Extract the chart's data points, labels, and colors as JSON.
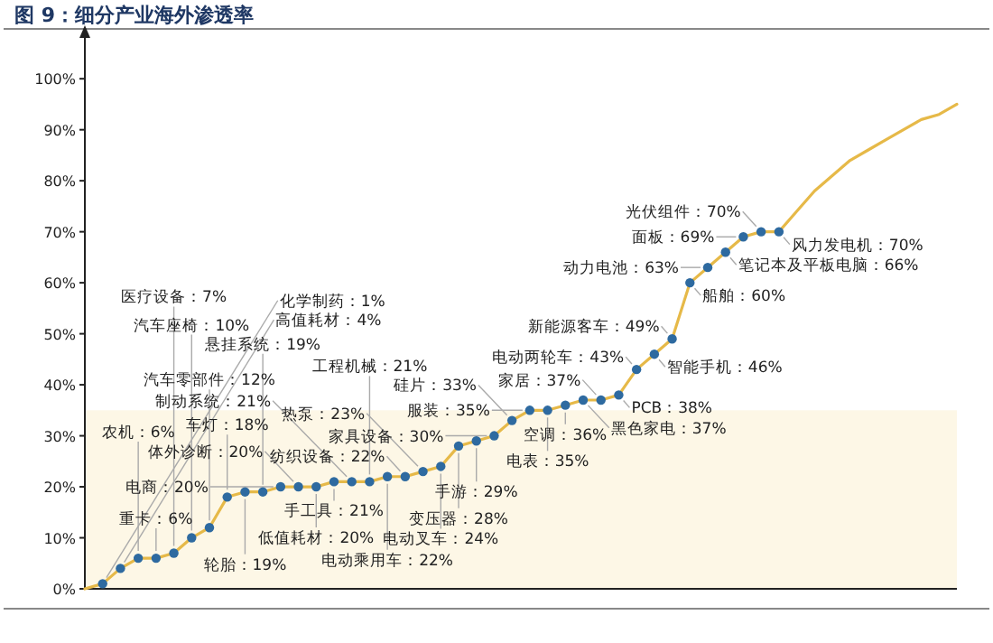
{
  "chart_data": {
    "type": "line",
    "title": "图 9：细分产业海外渗透率",
    "categories": [
      null,
      null,
      null,
      null,
      null,
      null,
      null,
      null,
      null,
      null,
      null,
      null,
      null,
      null,
      null,
      null,
      null,
      null,
      null,
      null,
      null,
      null,
      null,
      null,
      null,
      null,
      null,
      null,
      null,
      null,
      null,
      null,
      null,
      null,
      null,
      null,
      null,
      null,
      null,
      null,
      null,
      null,
      null,
      null,
      null,
      null,
      null,
      null,
      null,
      null
    ],
    "ylim": [
      0,
      108
    ],
    "tick_labels": "y",
    "yticks": [
      {
        "value": 0,
        "label": "0%"
      },
      {
        "value": 10,
        "label": "10%"
      },
      {
        "value": 20,
        "label": "20%"
      },
      {
        "value": 30,
        "label": "30%"
      },
      {
        "value": 40,
        "label": "40%"
      },
      {
        "value": 50,
        "label": "50%"
      },
      {
        "value": 60,
        "label": "60%"
      },
      {
        "value": 70,
        "label": "70%"
      },
      {
        "value": 80,
        "label": "80%"
      },
      {
        "value": 90,
        "label": "90%"
      },
      {
        "value": 100,
        "label": "100%"
      }
    ],
    "bands": [
      {
        "axis": "y",
        "from": 0,
        "to": 35,
        "color": "#fdf7e6"
      }
    ],
    "series": [
      {
        "color": "#e6b948",
        "values": [
          0,
          1,
          4,
          6,
          6,
          7,
          10,
          12,
          18,
          19,
          19,
          20,
          20,
          20,
          21,
          21,
          21,
          22,
          22,
          23,
          24,
          28,
          29,
          30,
          33,
          35,
          35,
          36,
          37,
          37,
          38,
          43,
          46,
          49,
          60,
          63,
          66,
          69,
          70,
          70,
          74,
          78,
          81,
          84,
          86,
          88,
          90,
          92,
          93,
          95
        ]
      },
      {
        "type": "scatter",
        "marker": "circle",
        "color": "#2e6aa0",
        "values": [
          null,
          1,
          4,
          6,
          6,
          7,
          10,
          12,
          18,
          19,
          19,
          20,
          20,
          20,
          21,
          21,
          21,
          22,
          22,
          23,
          24,
          28,
          29,
          30,
          33,
          35,
          35,
          36,
          37,
          37,
          38,
          43,
          46,
          49,
          60,
          63,
          66,
          69,
          70,
          70,
          null,
          null,
          null,
          null,
          null,
          null,
          null,
          null,
          null,
          null
        ]
      }
    ],
    "annotations": [
      "化学制药：1%",
      "高值耗材：4%",
      "农机：6%",
      "重卡：6%",
      "医疗设备：7%",
      "汽车座椅：10%",
      "汽车零部件：12%",
      "车灯：18%",
      "轮胎：19%",
      "悬挂系统：19%",
      "电商：20%",
      "体外诊断：20%",
      "低值耗材：20%",
      "手工具：21%",
      "制动系统：21%",
      "工程机械：21%",
      "电动乘用车：22%",
      "纺织设备：22%",
      "热泵：23%",
      "电动叉车：24%",
      "变压器：28%",
      "手游：29%",
      "家具设备：30%",
      "硅片：33%",
      "服装：35%",
      "电表：35%",
      "空调：36%",
      "黑色家电：37%",
      "家居：37%",
      "PCB：38%",
      "电动两轮车：43%",
      "智能手机：46%",
      "新能源客车：49%",
      "船舶：60%",
      "动力电池：63%",
      "笔记本及平板电脑：66%",
      "面板：69%",
      "光伏组件：70%",
      "风力发电机：70%"
    ]
  }
}
